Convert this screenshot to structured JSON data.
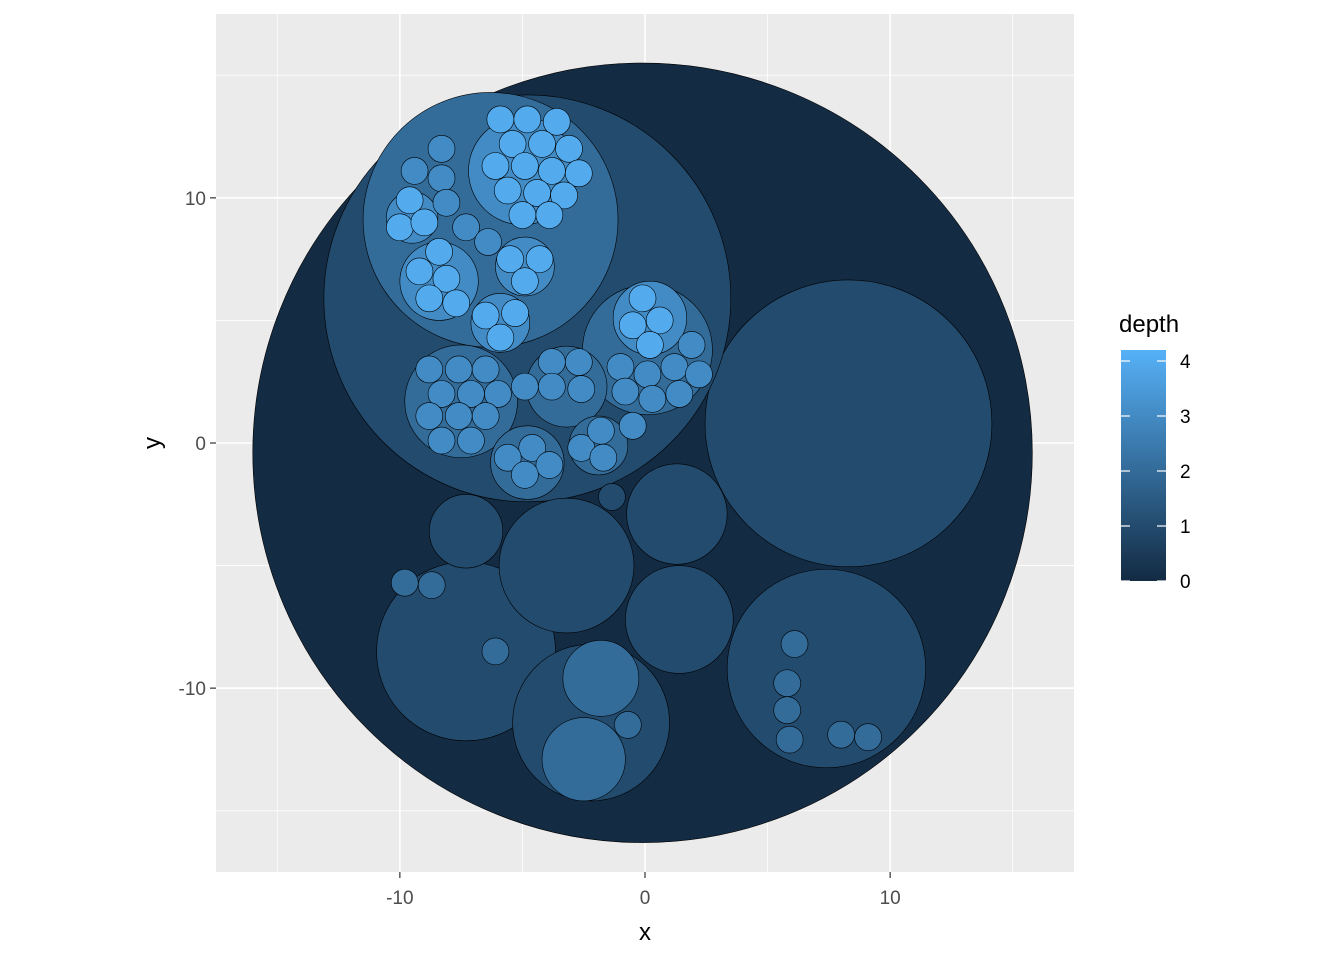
{
  "chart_data": {
    "type": "circle-packing",
    "xlabel": "x",
    "ylabel": "y",
    "xlim": [
      -17.5,
      17.5
    ],
    "ylim": [
      -17.5,
      17.5
    ],
    "x_ticks": [
      -10,
      0,
      10
    ],
    "y_ticks": [
      -10,
      0,
      10
    ],
    "x_tick_labels": [
      "-10",
      "0",
      "10"
    ],
    "y_tick_labels": [
      "-10",
      "0",
      "10"
    ],
    "grid": true,
    "legend": {
      "title": "depth",
      "position": "right",
      "breaks": [
        0,
        1,
        2,
        3,
        4
      ],
      "labels": [
        "0",
        "1",
        "2",
        "3",
        "4"
      ],
      "range": [
        0,
        4.2
      ],
      "low_color": "#132B43",
      "high_color": "#56B1F7"
    },
    "colors": {
      "panel_background": "#EBEBEB",
      "grid_line": "#FFFFFF",
      "circle_outline": "#000000"
    },
    "circles": [
      {
        "x": -0.1,
        "y": -0.4,
        "r": 15.9,
        "depth": 0
      },
      {
        "x": 8.3,
        "y": 0.8,
        "r": 5.85,
        "depth": 1
      },
      {
        "x": -4.8,
        "y": 5.9,
        "r": 8.3,
        "depth": 1
      },
      {
        "x": -7.3,
        "y": -8.5,
        "r": 3.65,
        "depth": 1
      },
      {
        "x": 7.4,
        "y": -9.2,
        "r": 4.05,
        "depth": 1
      },
      {
        "x": -2.2,
        "y": -11.4,
        "r": 3.2,
        "depth": 1
      },
      {
        "x": -3.2,
        "y": -5.0,
        "r": 2.75,
        "depth": 1
      },
      {
        "x": 1.3,
        "y": -2.9,
        "r": 2.05,
        "depth": 1
      },
      {
        "x": 1.4,
        "y": -7.2,
        "r": 2.2,
        "depth": 1
      },
      {
        "x": -7.3,
        "y": -3.6,
        "r": 1.5,
        "depth": 1
      },
      {
        "x": -1.35,
        "y": -2.2,
        "r": 0.55,
        "depth": 1
      },
      {
        "x": -9.8,
        "y": -5.7,
        "r": 0.55,
        "depth": 2
      },
      {
        "x": -8.7,
        "y": -5.8,
        "r": 0.55,
        "depth": 2
      },
      {
        "x": -6.1,
        "y": -8.5,
        "r": 0.55,
        "depth": 2
      },
      {
        "x": 6.1,
        "y": -8.2,
        "r": 0.55,
        "depth": 2
      },
      {
        "x": 5.8,
        "y": -9.8,
        "r": 0.55,
        "depth": 2
      },
      {
        "x": 5.8,
        "y": -10.9,
        "r": 0.55,
        "depth": 2
      },
      {
        "x": 5.9,
        "y": -12.1,
        "r": 0.55,
        "depth": 2
      },
      {
        "x": 8.0,
        "y": -11.9,
        "r": 0.55,
        "depth": 2
      },
      {
        "x": 9.1,
        "y": -12.0,
        "r": 0.55,
        "depth": 2
      },
      {
        "x": -1.8,
        "y": -9.6,
        "r": 1.55,
        "depth": 2
      },
      {
        "x": -2.5,
        "y": -12.9,
        "r": 1.7,
        "depth": 2
      },
      {
        "x": -0.7,
        "y": -11.5,
        "r": 0.55,
        "depth": 2
      },
      {
        "x": -6.3,
        "y": 9.1,
        "r": 5.2,
        "depth": 2
      },
      {
        "x": 0.1,
        "y": 3.8,
        "r": 2.65,
        "depth": 2
      },
      {
        "x": -7.5,
        "y": 1.7,
        "r": 2.3,
        "depth": 2
      },
      {
        "x": -3.2,
        "y": 2.3,
        "r": 1.65,
        "depth": 2
      },
      {
        "x": -4.8,
        "y": -0.8,
        "r": 1.5,
        "depth": 2
      },
      {
        "x": -1.9,
        "y": -0.1,
        "r": 1.2,
        "depth": 2
      },
      {
        "x": -5.0,
        "y": 11.1,
        "r": 2.2,
        "depth": 3
      },
      {
        "x": -8.4,
        "y": 6.6,
        "r": 1.6,
        "depth": 3
      },
      {
        "x": -4.9,
        "y": 7.2,
        "r": 1.2,
        "depth": 3
      },
      {
        "x": -5.9,
        "y": 4.9,
        "r": 1.2,
        "depth": 3
      },
      {
        "x": -9.5,
        "y": 9.2,
        "r": 1.05,
        "depth": 3
      },
      {
        "x": -8.3,
        "y": 12.0,
        "r": 0.55,
        "depth": 3
      },
      {
        "x": -9.4,
        "y": 11.1,
        "r": 0.55,
        "depth": 3
      },
      {
        "x": -8.3,
        "y": 10.8,
        "r": 0.55,
        "depth": 3
      },
      {
        "x": -8.1,
        "y": 9.8,
        "r": 0.55,
        "depth": 3
      },
      {
        "x": -7.3,
        "y": 8.8,
        "r": 0.55,
        "depth": 3
      },
      {
        "x": -6.4,
        "y": 8.2,
        "r": 0.55,
        "depth": 3
      },
      {
        "x": 0.2,
        "y": 5.1,
        "r": 1.5,
        "depth": 3
      },
      {
        "x": -8.8,
        "y": 3.0,
        "r": 0.55,
        "depth": 3
      },
      {
        "x": -7.6,
        "y": 3.0,
        "r": 0.55,
        "depth": 3
      },
      {
        "x": -6.5,
        "y": 3.0,
        "r": 0.55,
        "depth": 3
      },
      {
        "x": -8.3,
        "y": 2.0,
        "r": 0.55,
        "depth": 3
      },
      {
        "x": -7.1,
        "y": 2.0,
        "r": 0.55,
        "depth": 3
      },
      {
        "x": -6.0,
        "y": 2.0,
        "r": 0.55,
        "depth": 3
      },
      {
        "x": -8.8,
        "y": 1.1,
        "r": 0.55,
        "depth": 3
      },
      {
        "x": -7.6,
        "y": 1.1,
        "r": 0.55,
        "depth": 3
      },
      {
        "x": -6.5,
        "y": 1.1,
        "r": 0.55,
        "depth": 3
      },
      {
        "x": -8.3,
        "y": 0.1,
        "r": 0.55,
        "depth": 3
      },
      {
        "x": -7.1,
        "y": 0.1,
        "r": 0.55,
        "depth": 3
      },
      {
        "x": -3.8,
        "y": 3.3,
        "r": 0.55,
        "depth": 3
      },
      {
        "x": -2.7,
        "y": 3.3,
        "r": 0.55,
        "depth": 3
      },
      {
        "x": -4.9,
        "y": 2.3,
        "r": 0.55,
        "depth": 3
      },
      {
        "x": -3.8,
        "y": 2.3,
        "r": 0.55,
        "depth": 3
      },
      {
        "x": -2.6,
        "y": 2.2,
        "r": 0.55,
        "depth": 3
      },
      {
        "x": -4.6,
        "y": -0.2,
        "r": 0.55,
        "depth": 3
      },
      {
        "x": -5.6,
        "y": -0.6,
        "r": 0.55,
        "depth": 3
      },
      {
        "x": -3.9,
        "y": -0.9,
        "r": 0.55,
        "depth": 3
      },
      {
        "x": -4.9,
        "y": -1.3,
        "r": 0.55,
        "depth": 3
      },
      {
        "x": -2.6,
        "y": -0.2,
        "r": 0.55,
        "depth": 3
      },
      {
        "x": -1.8,
        "y": 0.5,
        "r": 0.55,
        "depth": 3
      },
      {
        "x": -1.7,
        "y": -0.6,
        "r": 0.55,
        "depth": 3
      },
      {
        "x": -1.0,
        "y": 3.1,
        "r": 0.55,
        "depth": 3
      },
      {
        "x": 0.1,
        "y": 2.8,
        "r": 0.55,
        "depth": 3
      },
      {
        "x": 1.2,
        "y": 3.1,
        "r": 0.55,
        "depth": 3
      },
      {
        "x": 1.9,
        "y": 4.0,
        "r": 0.55,
        "depth": 3
      },
      {
        "x": 2.2,
        "y": 2.8,
        "r": 0.55,
        "depth": 3
      },
      {
        "x": -0.8,
        "y": 2.1,
        "r": 0.55,
        "depth": 3
      },
      {
        "x": 0.3,
        "y": 1.8,
        "r": 0.55,
        "depth": 3
      },
      {
        "x": 1.4,
        "y": 2.0,
        "r": 0.55,
        "depth": 3
      },
      {
        "x": -0.5,
        "y": 0.7,
        "r": 0.55,
        "depth": 3
      },
      {
        "x": -5.9,
        "y": 13.2,
        "r": 0.55,
        "depth": 4
      },
      {
        "x": -4.8,
        "y": 13.2,
        "r": 0.55,
        "depth": 4
      },
      {
        "x": -3.6,
        "y": 13.1,
        "r": 0.55,
        "depth": 4
      },
      {
        "x": -5.4,
        "y": 12.2,
        "r": 0.55,
        "depth": 4
      },
      {
        "x": -4.2,
        "y": 12.2,
        "r": 0.55,
        "depth": 4
      },
      {
        "x": -3.1,
        "y": 12.0,
        "r": 0.55,
        "depth": 4
      },
      {
        "x": -6.1,
        "y": 11.3,
        "r": 0.55,
        "depth": 4
      },
      {
        "x": -4.9,
        "y": 11.3,
        "r": 0.55,
        "depth": 4
      },
      {
        "x": -3.8,
        "y": 11.1,
        "r": 0.55,
        "depth": 4
      },
      {
        "x": -2.7,
        "y": 11.0,
        "r": 0.55,
        "depth": 4
      },
      {
        "x": -5.6,
        "y": 10.3,
        "r": 0.55,
        "depth": 4
      },
      {
        "x": -4.4,
        "y": 10.2,
        "r": 0.55,
        "depth": 4
      },
      {
        "x": -3.3,
        "y": 10.1,
        "r": 0.55,
        "depth": 4
      },
      {
        "x": -5.0,
        "y": 9.3,
        "r": 0.55,
        "depth": 4
      },
      {
        "x": -3.9,
        "y": 9.3,
        "r": 0.55,
        "depth": 4
      },
      {
        "x": -10.0,
        "y": 8.8,
        "r": 0.55,
        "depth": 4
      },
      {
        "x": -9.6,
        "y": 9.9,
        "r": 0.55,
        "depth": 4
      },
      {
        "x": -9.0,
        "y": 9.0,
        "r": 0.55,
        "depth": 4
      },
      {
        "x": -8.4,
        "y": 7.8,
        "r": 0.55,
        "depth": 4
      },
      {
        "x": -9.2,
        "y": 7.0,
        "r": 0.55,
        "depth": 4
      },
      {
        "x": -8.1,
        "y": 6.7,
        "r": 0.55,
        "depth": 4
      },
      {
        "x": -8.8,
        "y": 5.9,
        "r": 0.55,
        "depth": 4
      },
      {
        "x": -7.7,
        "y": 5.7,
        "r": 0.55,
        "depth": 4
      },
      {
        "x": -5.5,
        "y": 7.5,
        "r": 0.55,
        "depth": 4
      },
      {
        "x": -4.3,
        "y": 7.5,
        "r": 0.55,
        "depth": 4
      },
      {
        "x": -4.9,
        "y": 6.6,
        "r": 0.55,
        "depth": 4
      },
      {
        "x": -6.5,
        "y": 5.2,
        "r": 0.55,
        "depth": 4
      },
      {
        "x": -5.3,
        "y": 5.3,
        "r": 0.55,
        "depth": 4
      },
      {
        "x": -5.9,
        "y": 4.3,
        "r": 0.55,
        "depth": 4
      },
      {
        "x": -0.1,
        "y": 5.9,
        "r": 0.55,
        "depth": 4
      },
      {
        "x": -0.5,
        "y": 4.8,
        "r": 0.55,
        "depth": 4
      },
      {
        "x": 0.6,
        "y": 5.0,
        "r": 0.55,
        "depth": 4
      },
      {
        "x": 0.2,
        "y": 4.0,
        "r": 0.55,
        "depth": 4
      }
    ]
  }
}
